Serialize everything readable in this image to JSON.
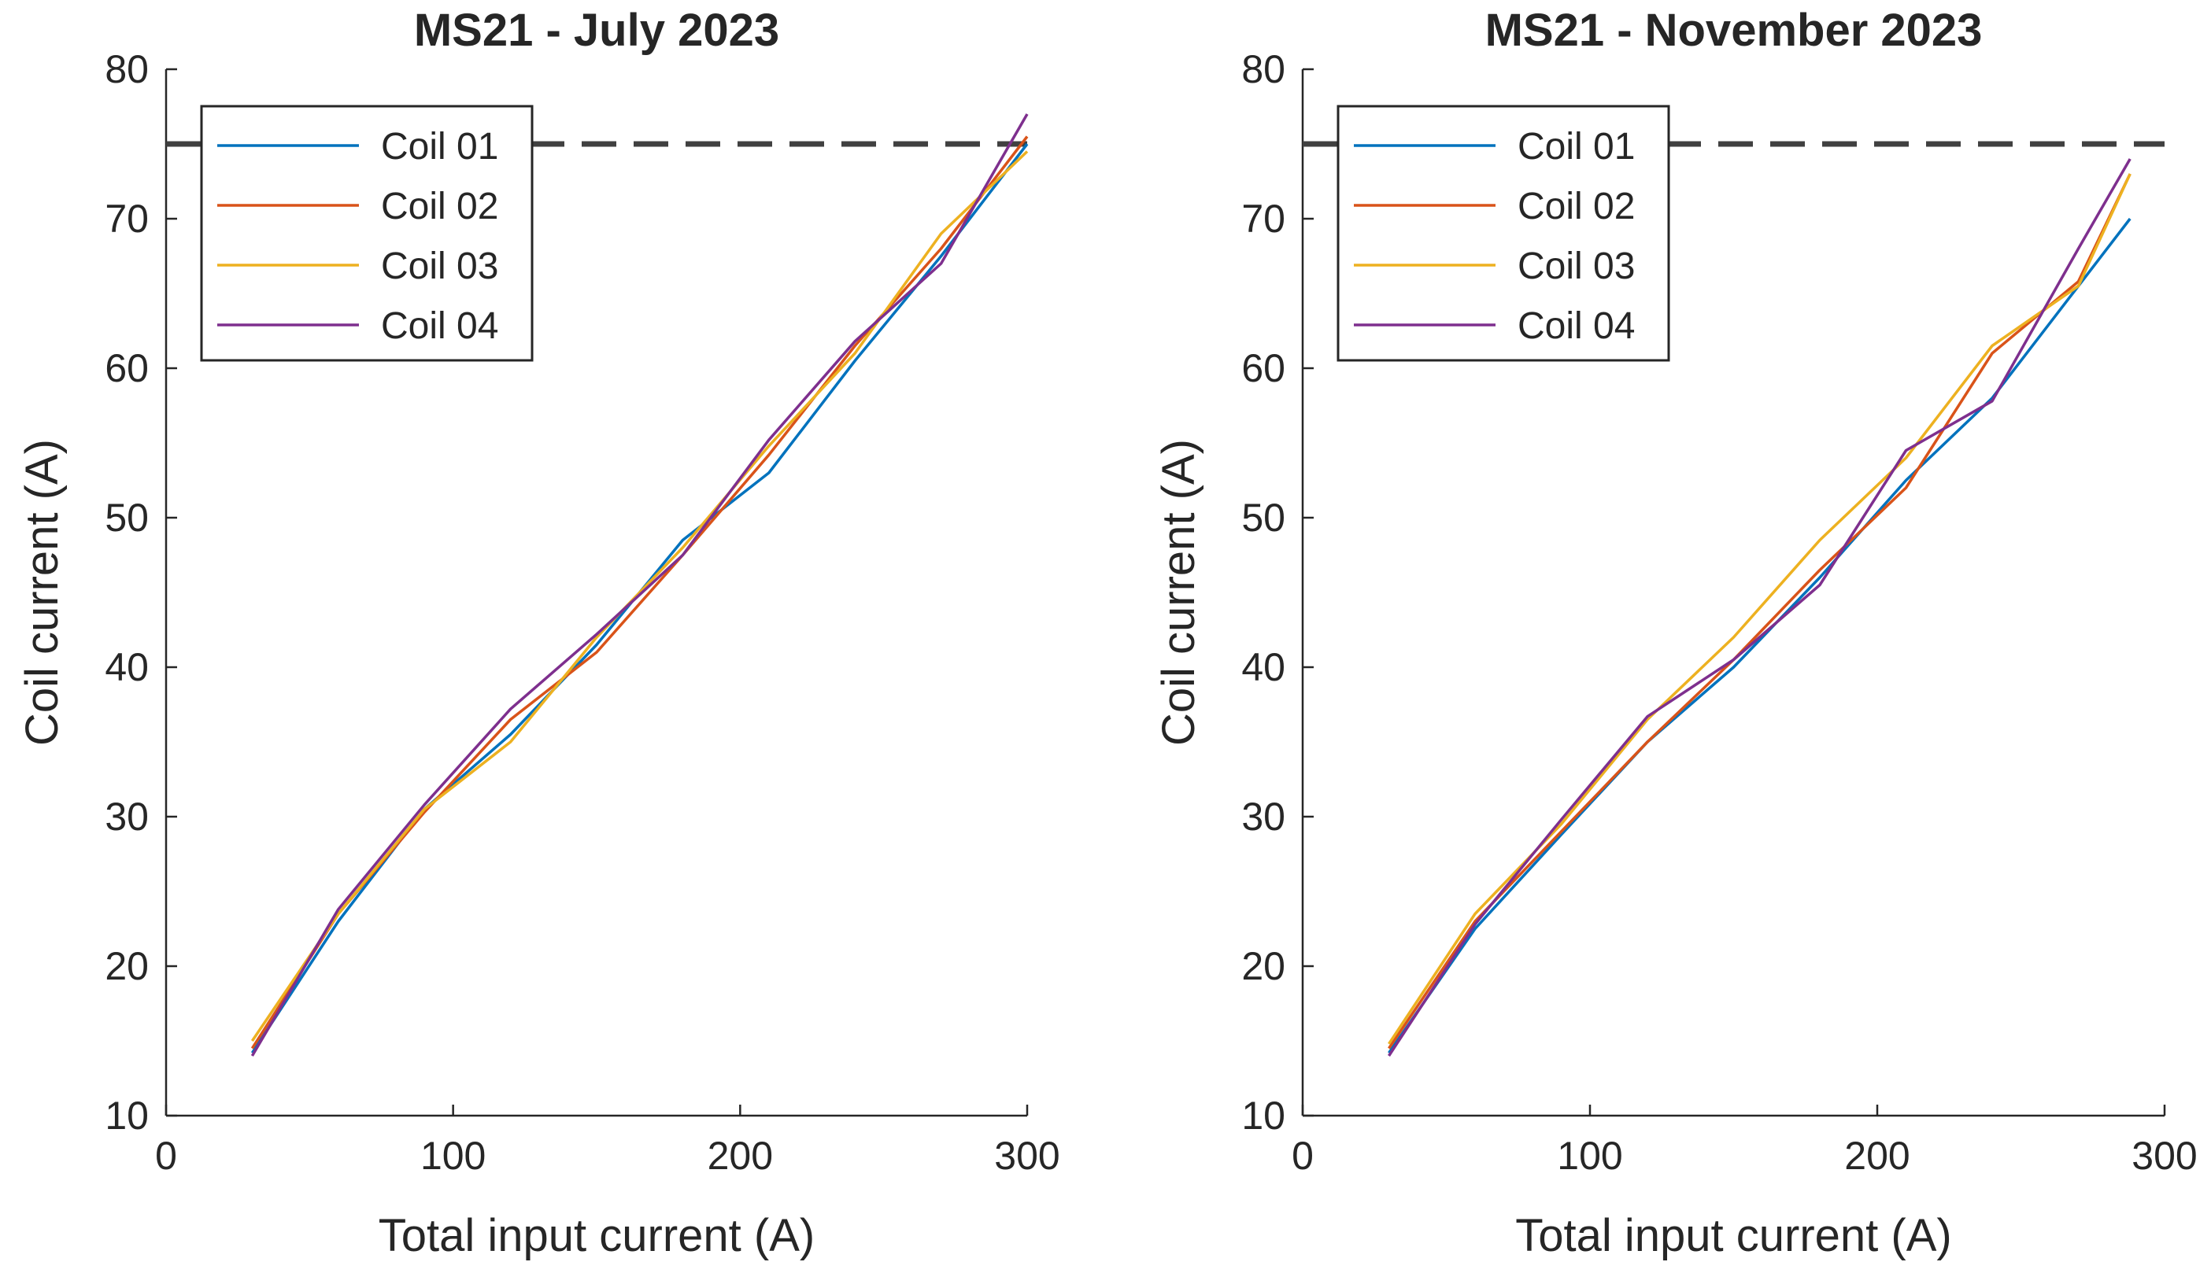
{
  "chart_data": [
    {
      "type": "line",
      "title": "MS21 - July 2023",
      "xlabel": "Total input current (A)",
      "ylabel": "Coil current (A)",
      "xlim": [
        0,
        300
      ],
      "ylim": [
        10,
        80
      ],
      "xticks": [
        "0",
        "100",
        "200",
        "300"
      ],
      "yticks": [
        "10",
        "20",
        "30",
        "40",
        "50",
        "60",
        "70",
        "80"
      ],
      "grid": false,
      "legend_position": "top-left",
      "reference_line": {
        "y": 75,
        "style": "dashed",
        "color": "#404040"
      },
      "series": [
        {
          "name": "Coil 01",
          "color": "#0072BD",
          "x": [
            30,
            60,
            90,
            120,
            150,
            180,
            210,
            240,
            270,
            300
          ],
          "y": [
            14.2,
            23,
            30.5,
            35.5,
            41.5,
            48.5,
            53,
            60.5,
            67.5,
            75
          ]
        },
        {
          "name": "Coil 02",
          "color": "#D95319",
          "x": [
            30,
            60,
            90,
            120,
            150,
            180,
            210,
            240,
            270,
            300
          ],
          "y": [
            14.5,
            23.5,
            30.3,
            36.5,
            41,
            47.5,
            54.2,
            61.5,
            68,
            75.5
          ]
        },
        {
          "name": "Coil 03",
          "color": "#EDB120",
          "x": [
            30,
            60,
            90,
            120,
            150,
            180,
            210,
            240,
            270,
            300
          ],
          "y": [
            15,
            23.5,
            30.5,
            35,
            42,
            48,
            54.8,
            61,
            69,
            74.5
          ]
        },
        {
          "name": "Coil 04",
          "color": "#7E2F8E",
          "x": [
            30,
            60,
            90,
            120,
            150,
            180,
            210,
            240,
            270,
            300
          ],
          "y": [
            14,
            23.8,
            30.8,
            37.2,
            42.2,
            47.5,
            55.2,
            61.8,
            67,
            77
          ]
        }
      ]
    },
    {
      "type": "line",
      "title": "MS21 - November 2023",
      "xlabel": "Total input current (A)",
      "ylabel": "Coil current (A)",
      "xlim": [
        0,
        300
      ],
      "ylim": [
        10,
        80
      ],
      "xticks": [
        "0",
        "100",
        "200",
        "300"
      ],
      "yticks": [
        "10",
        "20",
        "30",
        "40",
        "50",
        "60",
        "70",
        "80"
      ],
      "grid": false,
      "legend_position": "top-left",
      "reference_line": {
        "y": 75,
        "style": "dashed",
        "color": "#404040"
      },
      "series": [
        {
          "name": "Coil 01",
          "color": "#0072BD",
          "x": [
            30,
            60,
            90,
            120,
            150,
            180,
            210,
            240,
            270,
            288
          ],
          "y": [
            14.2,
            22.5,
            28.8,
            35,
            40,
            46,
            52.5,
            58,
            65.5,
            70
          ]
        },
        {
          "name": "Coil 02",
          "color": "#D95319",
          "x": [
            30,
            60,
            90,
            120,
            150,
            180,
            210,
            240,
            270,
            288
          ],
          "y": [
            14.5,
            23,
            29,
            35,
            40.5,
            46.5,
            52,
            61,
            65.8,
            73
          ]
        },
        {
          "name": "Coil 03",
          "color": "#EDB120",
          "x": [
            30,
            60,
            90,
            120,
            150,
            180,
            210,
            240,
            270,
            288
          ],
          "y": [
            14.8,
            23.5,
            29.5,
            36.5,
            42,
            48.5,
            54,
            61.5,
            65.5,
            73
          ]
        },
        {
          "name": "Coil 04",
          "color": "#7E2F8E",
          "x": [
            30,
            60,
            90,
            120,
            150,
            180,
            210,
            240,
            270,
            288
          ],
          "y": [
            14,
            22.8,
            29.8,
            36.7,
            40.5,
            45.5,
            54.5,
            57.8,
            68,
            74
          ]
        }
      ]
    }
  ]
}
